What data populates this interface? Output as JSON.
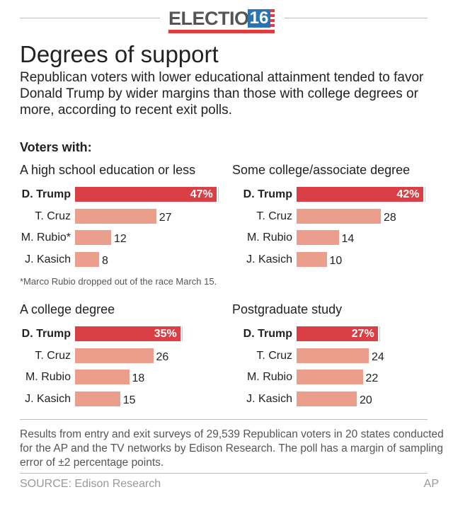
{
  "header": {
    "logo_text": "ELECTION",
    "logo_number": "16"
  },
  "title": "Degrees of support",
  "subtitle": "Republican voters with lower educational attainment tended to favor Donald Trump by wider margins than those with college degrees or more, according to recent exit polls.",
  "section_label": "Voters with:",
  "colors": {
    "leader": "#d93f45",
    "others": "#eb9e8c"
  },
  "chart_data": [
    {
      "type": "bar",
      "orientation": "horizontal",
      "title": "A high school education or less",
      "categories": [
        "D. Trump",
        "T. Cruz",
        "M. Rubio*",
        "J. Kasich"
      ],
      "values": [
        47,
        27,
        12,
        8
      ],
      "labels": [
        "47%",
        "27",
        "12",
        "8"
      ]
    },
    {
      "type": "bar",
      "orientation": "horizontal",
      "title": "Some college/associate degree",
      "categories": [
        "D. Trump",
        "T. Cruz",
        "M. Rubio",
        "J. Kasich"
      ],
      "values": [
        42,
        28,
        14,
        10
      ],
      "labels": [
        "42%",
        "28",
        "14",
        "10"
      ]
    },
    {
      "type": "bar",
      "orientation": "horizontal",
      "title": "A college degree",
      "categories": [
        "D. Trump",
        "T. Cruz",
        "M. Rubio",
        "J. Kasich"
      ],
      "values": [
        35,
        26,
        18,
        15
      ],
      "labels": [
        "35%",
        "26",
        "18",
        "15"
      ]
    },
    {
      "type": "bar",
      "orientation": "horizontal",
      "title": "Postgraduate study",
      "categories": [
        "D. Trump",
        "T. Cruz",
        "M. Rubio",
        "J. Kasich"
      ],
      "values": [
        27,
        24,
        22,
        20
      ],
      "labels": [
        "27%",
        "24",
        "22",
        "20"
      ]
    }
  ],
  "footnote": "*Marco Rubio dropped out of the race March 15.",
  "methodology": "Results from entry and exit surveys of 29,539 Republican voters in 20 states conducted for the AP and the TV networks by Edison Research. The poll has a margin of sampling error of ±2 percentage points.",
  "source": "SOURCE: Edison Research",
  "credit": "AP"
}
